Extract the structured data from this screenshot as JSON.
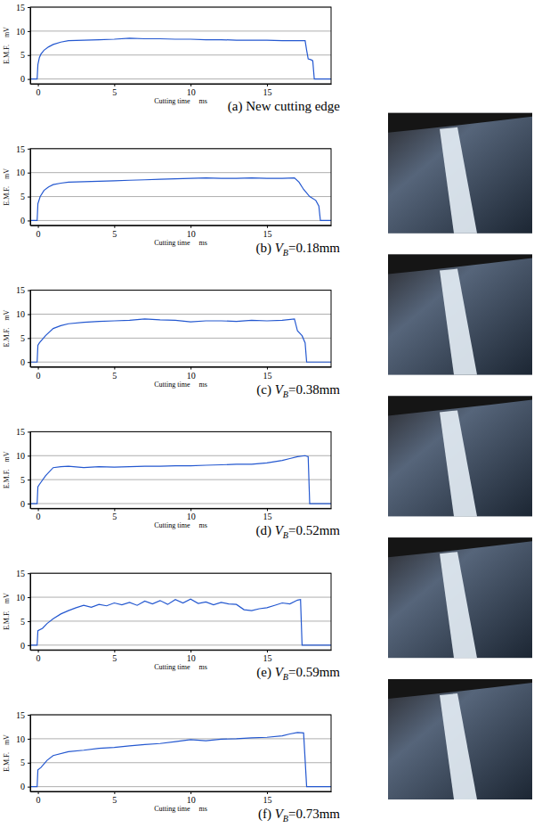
{
  "chart_data": [
    {
      "type": "line",
      "title": "(a) New cutting edge",
      "xlabel": "Cutting time     ms",
      "ylabel": "E.M.F.    mV",
      "grid": true,
      "xlim": [
        -0.5,
        19.2
      ],
      "ylim": [
        -1,
        15
      ],
      "xticks": [
        0,
        5,
        10,
        15
      ],
      "yticks": [
        0,
        5,
        10,
        15
      ],
      "x": [
        -0.5,
        -0.05,
        0,
        0.1,
        0.2,
        0.4,
        0.7,
        1,
        1.5,
        2,
        3,
        4,
        5,
        6,
        7,
        8,
        9,
        10,
        11,
        12,
        13,
        14,
        15,
        16,
        17,
        17.5,
        17.6,
        17.7,
        17.9,
        18,
        18.1,
        19.2
      ],
      "series": [
        {
          "color": "#2458d0",
          "values": [
            0,
            0,
            3,
            4.5,
            5.2,
            6,
            6.7,
            7.2,
            7.7,
            8,
            8.1,
            8.2,
            8.3,
            8.5,
            8.4,
            8.4,
            8.3,
            8.3,
            8.2,
            8.2,
            8.1,
            8.1,
            8.1,
            8,
            8,
            8,
            6,
            4.2,
            4,
            3.8,
            0,
            0
          ]
        }
      ]
    },
    {
      "type": "line",
      "title": "(b) VB=0.18mm",
      "xlabel": "Cutting time     ms",
      "ylabel": "E.M.F.    mV",
      "grid": true,
      "xlim": [
        -0.5,
        19.2
      ],
      "ylim": [
        -1,
        15
      ],
      "xticks": [
        0,
        5,
        10,
        15
      ],
      "yticks": [
        0,
        5,
        10,
        15
      ],
      "x": [
        -0.5,
        -0.05,
        0,
        0.15,
        0.4,
        0.7,
        1,
        1.5,
        2,
        3,
        4,
        5,
        6,
        7,
        8,
        9,
        10,
        11,
        12,
        13,
        14,
        15,
        16,
        16.8,
        17.1,
        17.4,
        17.8,
        18.2,
        18.4,
        18.5,
        19.2
      ],
      "series": [
        {
          "color": "#2458d0",
          "values": [
            0,
            0,
            3.5,
            5,
            6.3,
            7,
            7.5,
            7.8,
            8,
            8.1,
            8.2,
            8.3,
            8.4,
            8.5,
            8.6,
            8.7,
            8.8,
            8.9,
            8.8,
            8.8,
            8.9,
            8.8,
            8.8,
            8.9,
            8,
            6.5,
            5,
            4.2,
            3,
            0,
            0
          ]
        }
      ]
    },
    {
      "type": "line",
      "title": "(c) VB=0.38mm",
      "xlabel": "Cutting time     ms",
      "ylabel": "E.M.F.    mV",
      "grid": true,
      "xlim": [
        -0.5,
        19.2
      ],
      "ylim": [
        -1,
        15
      ],
      "xticks": [
        0,
        5,
        10,
        15
      ],
      "yticks": [
        0,
        5,
        10,
        15
      ],
      "x": [
        -0.5,
        -0.05,
        0,
        0.1,
        0.5,
        1,
        1.5,
        2,
        3,
        4,
        5,
        6,
        7,
        8,
        9,
        10,
        11,
        12,
        13,
        14,
        15,
        16,
        16.8,
        17,
        17.3,
        17.5,
        17.6,
        19.2
      ],
      "series": [
        {
          "color": "#2458d0",
          "values": [
            0,
            0,
            3.5,
            4,
            5.5,
            7,
            7.6,
            8,
            8.3,
            8.5,
            8.6,
            8.7,
            9,
            8.8,
            8.7,
            8.4,
            8.6,
            8.6,
            8.5,
            8.7,
            8.6,
            8.7,
            9,
            6.5,
            5.5,
            4,
            0,
            0
          ]
        }
      ]
    },
    {
      "type": "line",
      "title": "(d) VB=0.52mm",
      "xlabel": "Cutting time     ms",
      "ylabel": "E.M.F.    mV",
      "grid": true,
      "xlim": [
        -0.5,
        19.2
      ],
      "ylim": [
        -1,
        15
      ],
      "xticks": [
        0,
        5,
        10,
        15
      ],
      "yticks": [
        0,
        5,
        10,
        15
      ],
      "x": [
        -0.5,
        -0.05,
        0,
        0.1,
        0.5,
        1,
        1.5,
        2,
        3,
        4,
        5,
        6,
        7,
        8,
        9,
        10,
        11,
        12,
        13,
        14,
        15,
        16,
        16.5,
        17,
        17.5,
        17.7,
        17.8,
        19.2
      ],
      "series": [
        {
          "color": "#2458d0",
          "values": [
            0,
            0,
            3.5,
            4,
            5.8,
            7.5,
            7.7,
            7.8,
            7.5,
            7.7,
            7.6,
            7.7,
            7.8,
            7.8,
            7.9,
            7.9,
            8,
            8.1,
            8.2,
            8.2,
            8.5,
            9,
            9.4,
            9.8,
            10,
            9.8,
            0,
            0
          ]
        }
      ]
    },
    {
      "type": "line",
      "title": "(e) VB=0.59mm",
      "xlabel": "Cutting time     ms",
      "ylabel": "E.M.F.    mV",
      "grid": true,
      "xlim": [
        -0.5,
        19.2
      ],
      "ylim": [
        -1,
        15
      ],
      "xticks": [
        0,
        5,
        10,
        15
      ],
      "yticks": [
        0,
        5,
        10,
        15
      ],
      "x": [
        -0.5,
        -0.05,
        0,
        0.3,
        0.6,
        1,
        1.5,
        2,
        2.5,
        3,
        3.5,
        4,
        4.5,
        5,
        5.5,
        6,
        6.5,
        7,
        7.5,
        8,
        8.5,
        9,
        9.5,
        10,
        10.5,
        11,
        11.5,
        12,
        12.5,
        13,
        13.5,
        14,
        14.5,
        15,
        15.5,
        16,
        16.5,
        17,
        17.2,
        17.3,
        19.2
      ],
      "series": [
        {
          "color": "#2458d0",
          "values": [
            0,
            0,
            3,
            3.5,
            4.5,
            5.5,
            6.5,
            7.2,
            7.8,
            8.3,
            7.9,
            8.5,
            8.2,
            8.8,
            8.4,
            8.9,
            8.3,
            9.2,
            8.6,
            9.3,
            8.5,
            9.5,
            8.8,
            9.6,
            8.7,
            9.0,
            8.4,
            8.9,
            8.6,
            8.5,
            7.4,
            7.2,
            7.6,
            7.8,
            8.3,
            8.8,
            8.6,
            9.4,
            9.5,
            0,
            0
          ]
        }
      ]
    },
    {
      "type": "line",
      "title": "(f) VB=0.73mm",
      "xlabel": "Cutting time     ms",
      "ylabel": "E.M.F.    mV",
      "grid": true,
      "xlim": [
        -0.5,
        19.2
      ],
      "ylim": [
        -1,
        15
      ],
      "xticks": [
        0,
        5,
        10,
        15
      ],
      "yticks": [
        0,
        5,
        10,
        15
      ],
      "x": [
        -0.5,
        -0.05,
        0,
        0.2,
        0.6,
        1,
        2,
        3,
        4,
        5,
        6,
        7,
        8,
        9,
        10,
        11,
        12,
        13,
        14,
        15,
        16,
        16.5,
        17,
        17.4,
        17.6,
        19.2
      ],
      "series": [
        {
          "color": "#2458d0",
          "values": [
            0,
            0,
            3.5,
            4,
            5.5,
            6.5,
            7.3,
            7.6,
            8,
            8.2,
            8.5,
            8.8,
            9,
            9.4,
            9.8,
            9.6,
            9.9,
            10,
            10.2,
            10.3,
            10.6,
            11,
            11.3,
            11.2,
            0,
            0
          ]
        }
      ]
    }
  ]
}
